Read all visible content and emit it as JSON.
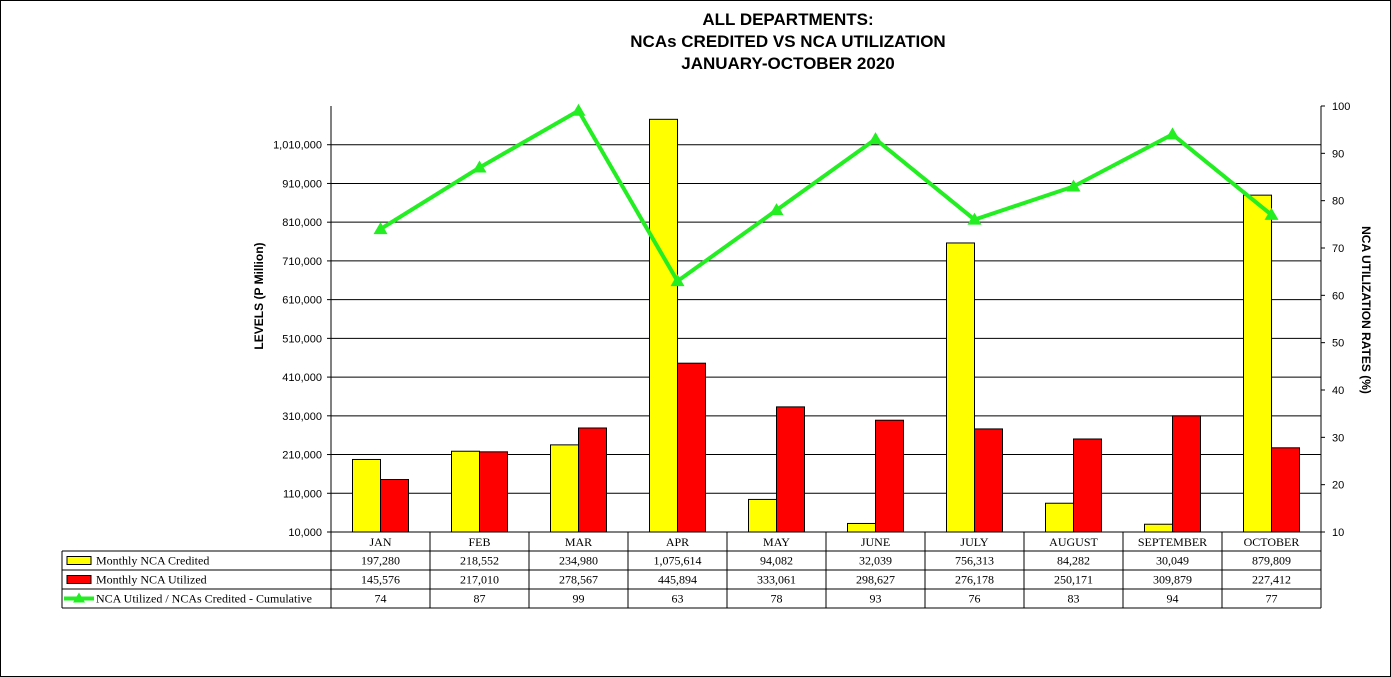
{
  "titles": {
    "line1": "ALL DEPARTMENTS:",
    "line2": "NCAs CREDITED VS NCA UTILIZATION",
    "line3": "JANUARY-OCTOBER 2020"
  },
  "chart_data": {
    "type": "bar",
    "title": "ALL DEPARTMENTS: NCAs CREDITED VS NCA UTILIZATION JANUARY-OCTOBER 2020",
    "ylabel": "LEVELS (P Million)",
    "y2label": "NCA UTILIZATION RATES (%)",
    "ylim": [
      10000,
      1110000
    ],
    "yticks": [
      10000,
      110000,
      210000,
      310000,
      410000,
      510000,
      610000,
      710000,
      810000,
      910000,
      1010000
    ],
    "yticklabels": [
      "10,000",
      "110,000",
      "210,000",
      "310,000",
      "410,000",
      "510,000",
      "610,000",
      "710,000",
      "810,000",
      "910,000",
      "1,010,000"
    ],
    "y2lim": [
      10,
      100
    ],
    "y2ticks": [
      10,
      20,
      30,
      40,
      50,
      60,
      70,
      80,
      90,
      100
    ],
    "grid": true,
    "legend": "data table",
    "categories": [
      "JAN",
      "FEB",
      "MAR",
      "APR",
      "MAY",
      "JUNE",
      "JULY",
      "AUGUST",
      "SEPTEMBER",
      "OCTOBER"
    ],
    "series": [
      {
        "name": "Monthly NCA Credited",
        "type": "bar",
        "axis": "left",
        "color": "#FFFF00",
        "values": [
          197280,
          218552,
          234980,
          1075614,
          94082,
          32039,
          756313,
          84282,
          30049,
          879809
        ],
        "labels": [
          "197,280",
          "218,552",
          "234,980",
          "1,075,614",
          "94,082",
          "32,039",
          "756,313",
          "84,282",
          "30,049",
          "879,809"
        ]
      },
      {
        "name": "Monthly NCA Utilized",
        "type": "bar",
        "axis": "left",
        "color": "#FF0000",
        "values": [
          145576,
          217010,
          278567,
          445894,
          333061,
          298627,
          276178,
          250171,
          309879,
          227412
        ],
        "labels": [
          "145,576",
          "217,010",
          "278,567",
          "445,894",
          "333,061",
          "298,627",
          "276,178",
          "250,171",
          "309,879",
          "227,412"
        ]
      },
      {
        "name": "NCA Utilized / NCAs Credited - Cumulative",
        "type": "line",
        "axis": "right",
        "color": "#22EE22",
        "values": [
          74,
          87,
          99,
          63,
          78,
          93,
          76,
          83,
          94,
          77
        ],
        "labels": [
          "74",
          "87",
          "99",
          "63",
          "78",
          "93",
          "76",
          "83",
          "94",
          "77"
        ]
      }
    ]
  }
}
